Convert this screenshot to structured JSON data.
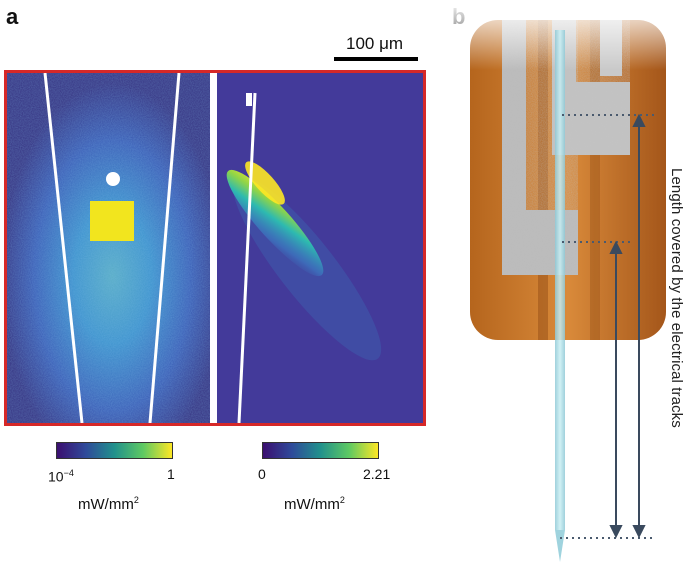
{
  "figure": {
    "panel_a": {
      "letter": "a",
      "scale_bar_label": "100 μm",
      "left_colorbar": {
        "min_label": "10",
        "min_exponent": "−4",
        "max_label": "1",
        "unit_base": "mW/mm",
        "unit_exp": "2",
        "colors": [
          "#3b0f70",
          "#2f4a9a",
          "#21918c",
          "#5ec962",
          "#fde725"
        ]
      },
      "right_colorbar": {
        "min_label": "0",
        "max_label": "2.21",
        "unit_base": "mW/mm",
        "unit_exp": "2",
        "colors": [
          "#3b0f70",
          "#2f4a9a",
          "#21918c",
          "#5ec962",
          "#fde725"
        ]
      },
      "frame_color": "#d62828"
    },
    "panel_b": {
      "letter": "b",
      "vertical_label": "Length covered by the electrical tracks"
    }
  }
}
